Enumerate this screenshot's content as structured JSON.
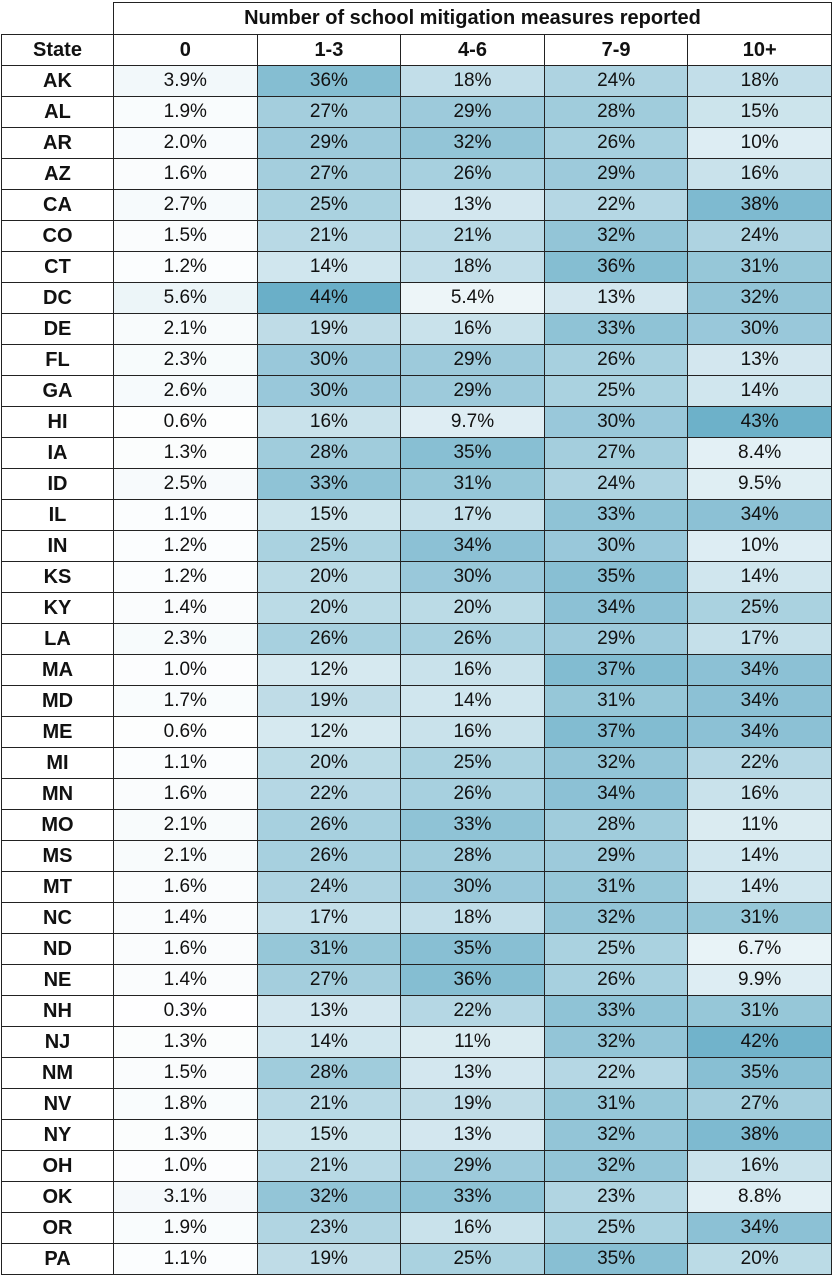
{
  "chart_data": {
    "type": "table",
    "title": "Number of school mitigation measures reported",
    "row_header": "State",
    "columns": [
      "0",
      "1-3",
      "4-6",
      "7-9",
      "10+"
    ],
    "color_scale": {
      "low": "#ffffff",
      "high": "#6aafc8",
      "max_value": 44
    },
    "rows": [
      {
        "state": "AK",
        "labels": [
          "3.9%",
          "36%",
          "18%",
          "24%",
          "18%"
        ],
        "values": [
          3.9,
          36,
          18,
          24,
          18
        ]
      },
      {
        "state": "AL",
        "labels": [
          "1.9%",
          "27%",
          "29%",
          "28%",
          "15%"
        ],
        "values": [
          1.9,
          27,
          29,
          28,
          15
        ]
      },
      {
        "state": "AR",
        "labels": [
          "2.0%",
          "29%",
          "32%",
          "26%",
          "10%"
        ],
        "values": [
          2.0,
          29,
          32,
          26,
          10
        ]
      },
      {
        "state": "AZ",
        "labels": [
          "1.6%",
          "27%",
          "26%",
          "29%",
          "16%"
        ],
        "values": [
          1.6,
          27,
          26,
          29,
          16
        ]
      },
      {
        "state": "CA",
        "labels": [
          "2.7%",
          "25%",
          "13%",
          "22%",
          "38%"
        ],
        "values": [
          2.7,
          25,
          13,
          22,
          38
        ]
      },
      {
        "state": "CO",
        "labels": [
          "1.5%",
          "21%",
          "21%",
          "32%",
          "24%"
        ],
        "values": [
          1.5,
          21,
          21,
          32,
          24
        ]
      },
      {
        "state": "CT",
        "labels": [
          "1.2%",
          "14%",
          "18%",
          "36%",
          "31%"
        ],
        "values": [
          1.2,
          14,
          18,
          36,
          31
        ]
      },
      {
        "state": "DC",
        "labels": [
          "5.6%",
          "44%",
          "5.4%",
          "13%",
          "32%"
        ],
        "values": [
          5.6,
          44,
          5.4,
          13,
          32
        ]
      },
      {
        "state": "DE",
        "labels": [
          "2.1%",
          "19%",
          "16%",
          "33%",
          "30%"
        ],
        "values": [
          2.1,
          19,
          16,
          33,
          30
        ]
      },
      {
        "state": "FL",
        "labels": [
          "2.3%",
          "30%",
          "29%",
          "26%",
          "13%"
        ],
        "values": [
          2.3,
          30,
          29,
          26,
          13
        ]
      },
      {
        "state": "GA",
        "labels": [
          "2.6%",
          "30%",
          "29%",
          "25%",
          "14%"
        ],
        "values": [
          2.6,
          30,
          29,
          25,
          14
        ]
      },
      {
        "state": "HI",
        "labels": [
          "0.6%",
          "16%",
          "9.7%",
          "30%",
          "43%"
        ],
        "values": [
          0.6,
          16,
          9.7,
          30,
          43
        ]
      },
      {
        "state": "IA",
        "labels": [
          "1.3%",
          "28%",
          "35%",
          "27%",
          "8.4%"
        ],
        "values": [
          1.3,
          28,
          35,
          27,
          8.4
        ]
      },
      {
        "state": "ID",
        "labels": [
          "2.5%",
          "33%",
          "31%",
          "24%",
          "9.5%"
        ],
        "values": [
          2.5,
          33,
          31,
          24,
          9.5
        ]
      },
      {
        "state": "IL",
        "labels": [
          "1.1%",
          "15%",
          "17%",
          "33%",
          "34%"
        ],
        "values": [
          1.1,
          15,
          17,
          33,
          34
        ]
      },
      {
        "state": "IN",
        "labels": [
          "1.2%",
          "25%",
          "34%",
          "30%",
          "10%"
        ],
        "values": [
          1.2,
          25,
          34,
          30,
          10
        ]
      },
      {
        "state": "KS",
        "labels": [
          "1.2%",
          "20%",
          "30%",
          "35%",
          "14%"
        ],
        "values": [
          1.2,
          20,
          30,
          35,
          14
        ]
      },
      {
        "state": "KY",
        "labels": [
          "1.4%",
          "20%",
          "20%",
          "34%",
          "25%"
        ],
        "values": [
          1.4,
          20,
          20,
          34,
          25
        ]
      },
      {
        "state": "LA",
        "labels": [
          "2.3%",
          "26%",
          "26%",
          "29%",
          "17%"
        ],
        "values": [
          2.3,
          26,
          26,
          29,
          17
        ]
      },
      {
        "state": "MA",
        "labels": [
          "1.0%",
          "12%",
          "16%",
          "37%",
          "34%"
        ],
        "values": [
          1.0,
          12,
          16,
          37,
          34
        ]
      },
      {
        "state": "MD",
        "labels": [
          "1.7%",
          "19%",
          "14%",
          "31%",
          "34%"
        ],
        "values": [
          1.7,
          19,
          14,
          31,
          34
        ]
      },
      {
        "state": "ME",
        "labels": [
          "0.6%",
          "12%",
          "16%",
          "37%",
          "34%"
        ],
        "values": [
          0.6,
          12,
          16,
          37,
          34
        ]
      },
      {
        "state": "MI",
        "labels": [
          "1.1%",
          "20%",
          "25%",
          "32%",
          "22%"
        ],
        "values": [
          1.1,
          20,
          25,
          32,
          22
        ]
      },
      {
        "state": "MN",
        "labels": [
          "1.6%",
          "22%",
          "26%",
          "34%",
          "16%"
        ],
        "values": [
          1.6,
          22,
          26,
          34,
          16
        ]
      },
      {
        "state": "MO",
        "labels": [
          "2.1%",
          "26%",
          "33%",
          "28%",
          "11%"
        ],
        "values": [
          2.1,
          26,
          33,
          28,
          11
        ]
      },
      {
        "state": "MS",
        "labels": [
          "2.1%",
          "26%",
          "28%",
          "29%",
          "14%"
        ],
        "values": [
          2.1,
          26,
          28,
          29,
          14
        ]
      },
      {
        "state": "MT",
        "labels": [
          "1.6%",
          "24%",
          "30%",
          "31%",
          "14%"
        ],
        "values": [
          1.6,
          24,
          30,
          31,
          14
        ]
      },
      {
        "state": "NC",
        "labels": [
          "1.4%",
          "17%",
          "18%",
          "32%",
          "31%"
        ],
        "values": [
          1.4,
          17,
          18,
          32,
          31
        ]
      },
      {
        "state": "ND",
        "labels": [
          "1.6%",
          "31%",
          "35%",
          "25%",
          "6.7%"
        ],
        "values": [
          1.6,
          31,
          35,
          25,
          6.7
        ]
      },
      {
        "state": "NE",
        "labels": [
          "1.4%",
          "27%",
          "36%",
          "26%",
          "9.9%"
        ],
        "values": [
          1.4,
          27,
          36,
          26,
          9.9
        ]
      },
      {
        "state": "NH",
        "labels": [
          "0.3%",
          "13%",
          "22%",
          "33%",
          "31%"
        ],
        "values": [
          0.3,
          13,
          22,
          33,
          31
        ]
      },
      {
        "state": "NJ",
        "labels": [
          "1.3%",
          "14%",
          "11%",
          "32%",
          "42%"
        ],
        "values": [
          1.3,
          14,
          11,
          32,
          42
        ]
      },
      {
        "state": "NM",
        "labels": [
          "1.5%",
          "28%",
          "13%",
          "22%",
          "35%"
        ],
        "values": [
          1.5,
          28,
          13,
          22,
          35
        ]
      },
      {
        "state": "NV",
        "labels": [
          "1.8%",
          "21%",
          "19%",
          "31%",
          "27%"
        ],
        "values": [
          1.8,
          21,
          19,
          31,
          27
        ]
      },
      {
        "state": "NY",
        "labels": [
          "1.3%",
          "15%",
          "13%",
          "32%",
          "38%"
        ],
        "values": [
          1.3,
          15,
          13,
          32,
          38
        ]
      },
      {
        "state": "OH",
        "labels": [
          "1.0%",
          "21%",
          "29%",
          "32%",
          "16%"
        ],
        "values": [
          1.0,
          21,
          29,
          32,
          16
        ]
      },
      {
        "state": "OK",
        "labels": [
          "3.1%",
          "32%",
          "33%",
          "23%",
          "8.8%"
        ],
        "values": [
          3.1,
          32,
          33,
          23,
          8.8
        ]
      },
      {
        "state": "OR",
        "labels": [
          "1.9%",
          "23%",
          "16%",
          "25%",
          "34%"
        ],
        "values": [
          1.9,
          23,
          16,
          25,
          34
        ]
      },
      {
        "state": "PA",
        "labels": [
          "1.1%",
          "19%",
          "25%",
          "35%",
          "20%"
        ],
        "values": [
          1.1,
          19,
          25,
          35,
          20
        ]
      }
    ]
  }
}
